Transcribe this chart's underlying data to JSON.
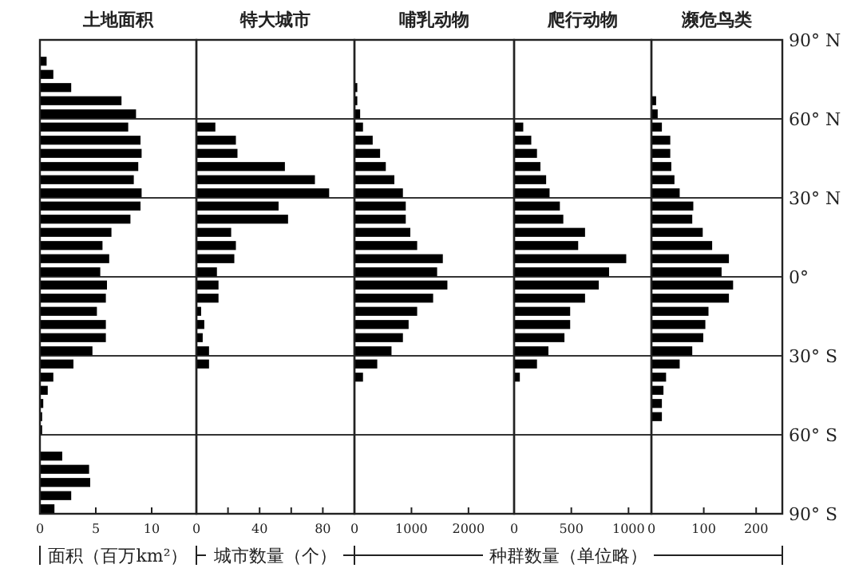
{
  "chart_data": [
    {
      "type": "bar",
      "orientation": "horizontal",
      "title": "土地面积",
      "xlabel": "面积（百万km²）",
      "color": "#000000",
      "grid": "y",
      "tick_labels": "x",
      "xlim": [
        0,
        14
      ],
      "xticks": [
        0,
        5,
        10
      ],
      "ylim": [
        -90,
        90
      ],
      "yticks": [
        90,
        60,
        30,
        0,
        -30,
        -60,
        -90
      ],
      "x": [
        87.5,
        82.5,
        77.5,
        72.5,
        67.5,
        62.5,
        57.5,
        52.5,
        47.5,
        42.5,
        37.5,
        32.5,
        27.5,
        22.5,
        17.5,
        12.5,
        7.5,
        2.5,
        -2.5,
        -7.5,
        -12.5,
        -17.5,
        -22.5,
        -27.5,
        -32.5,
        -37.5,
        -42.5,
        -47.5,
        -52.5,
        -57.5,
        -62.5,
        -67.5,
        -72.5,
        -77.5,
        -82.5,
        -87.5
      ],
      "values": [
        0,
        0.6,
        1.2,
        2.8,
        7.3,
        8.6,
        7.9,
        9.0,
        9.1,
        8.8,
        8.4,
        9.1,
        9.0,
        8.1,
        6.4,
        5.6,
        6.2,
        5.4,
        6.0,
        5.9,
        5.1,
        5.9,
        5.9,
        4.7,
        3.0,
        1.2,
        0.7,
        0.3,
        0.2,
        0.2,
        0,
        2.0,
        4.4,
        4.5,
        2.8,
        1.3
      ]
    },
    {
      "type": "bar",
      "orientation": "horizontal",
      "title": "特大城市",
      "xlabel": "城市数量（个）",
      "color": "#000000",
      "grid": "y",
      "tick_labels": "x",
      "xlim": [
        0,
        100
      ],
      "xticks": [
        0,
        {
          "value": 20,
          "label": null
        },
        40,
        {
          "value": 60,
          "label": null
        },
        80
      ],
      "ylim": [
        -90,
        90
      ],
      "yticks": [
        90,
        60,
        30,
        0,
        -30,
        -60,
        -90
      ],
      "x": [
        87.5,
        82.5,
        77.5,
        72.5,
        67.5,
        62.5,
        57.5,
        52.5,
        47.5,
        42.5,
        37.5,
        32.5,
        27.5,
        22.5,
        17.5,
        12.5,
        7.5,
        2.5,
        -2.5,
        -7.5,
        -12.5,
        -17.5,
        -22.5,
        -27.5,
        -32.5,
        -37.5,
        -42.5,
        -47.5,
        -52.5,
        -57.5,
        -62.5,
        -67.5,
        -72.5,
        -77.5,
        -82.5,
        -87.5
      ],
      "values": [
        0,
        0,
        0,
        0,
        0,
        0,
        12,
        25,
        26,
        56,
        75,
        84,
        52,
        58,
        22,
        25,
        24,
        13,
        14,
        14,
        3,
        5,
        4,
        8,
        8,
        0,
        0,
        0,
        0,
        0,
        0,
        0,
        0,
        0,
        0,
        0
      ]
    },
    {
      "type": "bar",
      "orientation": "horizontal",
      "title": "哺乳动物",
      "xlabel": "种群数量（单位略）",
      "color": "#000000",
      "grid": "y",
      "tick_labels": "x",
      "xlim": [
        0,
        2800
      ],
      "xticks": [
        0,
        1000,
        2000
      ],
      "ylim": [
        -90,
        90
      ],
      "yticks": [
        90,
        60,
        30,
        0,
        -30,
        -60,
        -90
      ],
      "x": [
        87.5,
        82.5,
        77.5,
        72.5,
        67.5,
        62.5,
        57.5,
        52.5,
        47.5,
        42.5,
        37.5,
        32.5,
        27.5,
        22.5,
        17.5,
        12.5,
        7.5,
        2.5,
        -2.5,
        -7.5,
        -12.5,
        -17.5,
        -22.5,
        -27.5,
        -32.5,
        -37.5,
        -42.5,
        -47.5,
        -52.5,
        -57.5,
        -62.5,
        -67.5,
        -72.5,
        -77.5,
        -82.5,
        -87.5
      ],
      "values": [
        0,
        0,
        0,
        50,
        50,
        100,
        150,
        320,
        450,
        550,
        700,
        850,
        900,
        900,
        980,
        1100,
        1550,
        1450,
        1630,
        1380,
        1100,
        950,
        850,
        650,
        400,
        150,
        0,
        0,
        0,
        0,
        0,
        0,
        0,
        0,
        0,
        0
      ]
    },
    {
      "type": "bar",
      "orientation": "horizontal",
      "title": "爬行动物",
      "color": "#000000",
      "grid": "y",
      "tick_labels": "x",
      "xlim": [
        0,
        1200
      ],
      "xticks": [
        0,
        500,
        1000
      ],
      "ylim": [
        -90,
        90
      ],
      "yticks": [
        90,
        60,
        30,
        0,
        -30,
        -60,
        -90
      ],
      "x": [
        87.5,
        82.5,
        77.5,
        72.5,
        67.5,
        62.5,
        57.5,
        52.5,
        47.5,
        42.5,
        37.5,
        32.5,
        27.5,
        22.5,
        17.5,
        12.5,
        7.5,
        2.5,
        -2.5,
        -7.5,
        -12.5,
        -17.5,
        -22.5,
        -27.5,
        -32.5,
        -37.5,
        -42.5,
        -47.5,
        -52.5,
        -57.5,
        -62.5,
        -67.5,
        -72.5,
        -77.5,
        -82.5,
        -87.5
      ],
      "values": [
        0,
        0,
        0,
        0,
        0,
        0,
        80,
        150,
        200,
        230,
        280,
        310,
        400,
        430,
        620,
        560,
        980,
        830,
        740,
        620,
        490,
        490,
        440,
        300,
        200,
        50,
        0,
        0,
        0,
        0,
        0,
        0,
        0,
        0,
        0,
        0
      ]
    },
    {
      "type": "bar",
      "orientation": "horizontal",
      "title": "濒危鸟类",
      "color": "#000000",
      "grid": "y",
      "xlim": [
        0,
        250
      ],
      "xticks": [
        0,
        100,
        200
      ],
      "ylim": [
        -90,
        90
      ],
      "yticks": [
        {
          "value": 90,
          "label": "90° N"
        },
        {
          "value": 60,
          "label": "60° N"
        },
        {
          "value": 30,
          "label": "30° N"
        },
        {
          "value": 0,
          "label": "0°"
        },
        {
          "value": -30,
          "label": "30° S"
        },
        {
          "value": -60,
          "label": "60° S"
        },
        {
          "value": -90,
          "label": "90° S"
        }
      ],
      "x": [
        87.5,
        82.5,
        77.5,
        72.5,
        67.5,
        62.5,
        57.5,
        52.5,
        47.5,
        42.5,
        37.5,
        32.5,
        27.5,
        22.5,
        17.5,
        12.5,
        7.5,
        2.5,
        -2.5,
        -7.5,
        -12.5,
        -17.5,
        -22.5,
        -27.5,
        -32.5,
        -37.5,
        -42.5,
        -47.5,
        -52.5,
        -57.5,
        -62.5,
        -67.5,
        -72.5,
        -77.5,
        -82.5,
        -87.5
      ],
      "values": [
        0,
        0,
        0,
        0,
        9,
        12,
        20,
        36,
        36,
        38,
        44,
        54,
        80,
        78,
        98,
        116,
        148,
        134,
        156,
        148,
        109,
        103,
        99,
        78,
        54,
        28,
        23,
        20,
        20,
        0,
        0,
        0,
        0,
        0,
        0,
        0
      ]
    }
  ]
}
